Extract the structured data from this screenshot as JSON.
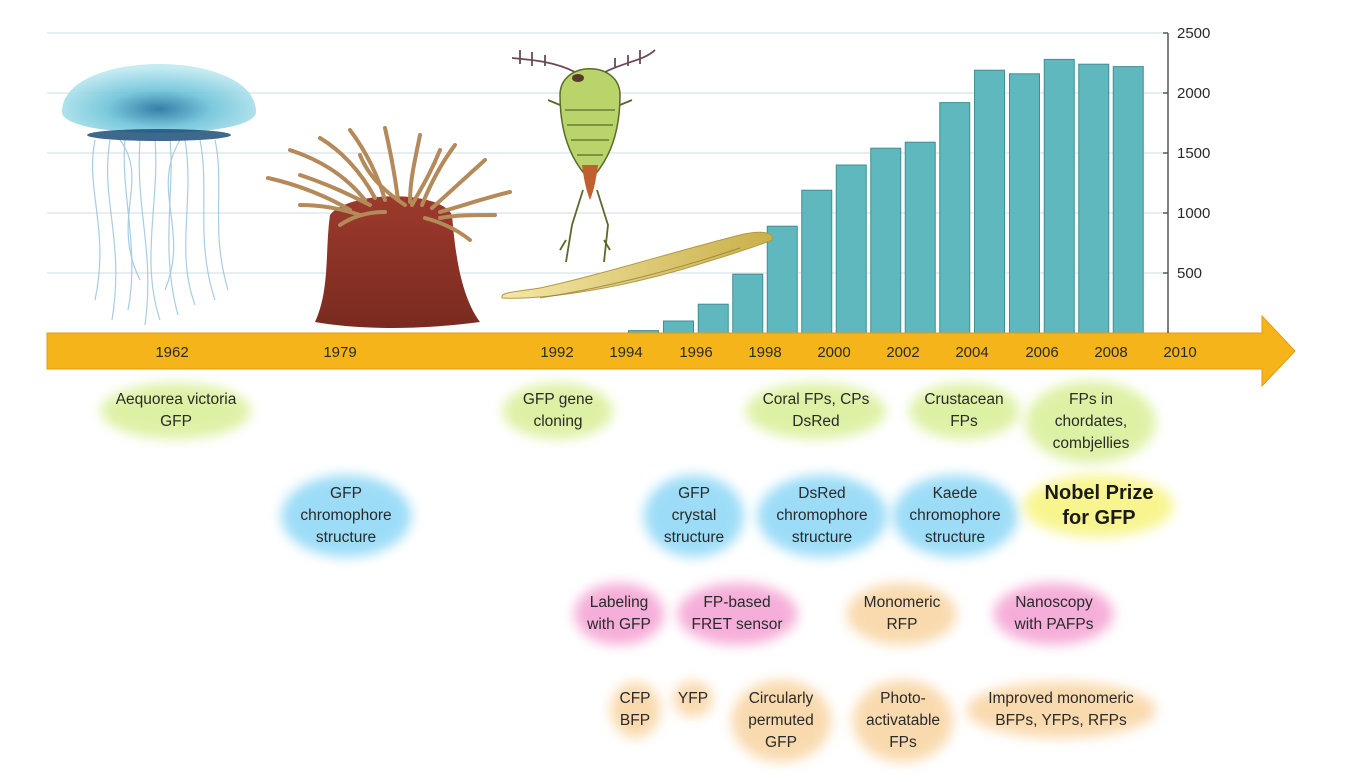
{
  "chart_data": {
    "type": "bar",
    "years": [
      1994,
      1995,
      1996,
      1997,
      1998,
      1999,
      2000,
      2001,
      2002,
      2003,
      2004,
      2005,
      2006,
      2007,
      2008,
      2009
    ],
    "values": [
      20,
      100,
      240,
      490,
      890,
      1190,
      1400,
      1540,
      1590,
      1920,
      2190,
      2160,
      2280,
      2240,
      2220,
      0
    ],
    "ylim": [
      0,
      2500
    ],
    "yticks": [
      500,
      1000,
      1500,
      2000,
      2500
    ],
    "timeline_ticks": [
      1962,
      1979,
      1992,
      1994,
      1996,
      1998,
      2000,
      2002,
      2004,
      2006,
      2008,
      2010
    ],
    "grid": true,
    "colors": {
      "bar": "#5fb8bd",
      "bar_edge": "#3f8f93",
      "arrow": "#f5b41a",
      "grid": "#cfdde2"
    }
  },
  "milestones": [
    {
      "id": "aequorea",
      "text": "Aequorea victoria\nGFP",
      "glow": "#c8e86a"
    },
    {
      "id": "gfp-cloning",
      "text": "GFP gene\ncloning",
      "glow": "#c8e86a"
    },
    {
      "id": "coral",
      "text": "Coral FPs, CPs\nDsRed",
      "glow": "#c8e86a"
    },
    {
      "id": "crustacean",
      "text": "Crustacean\nFPs",
      "glow": "#c8e86a"
    },
    {
      "id": "chordates",
      "text": "FPs in\nchordates,\ncombjellies",
      "glow": "#c8e86a"
    },
    {
      "id": "gfp-chromophore",
      "text": "GFP\nchromophore\nstructure",
      "glow": "#5cc6f2"
    },
    {
      "id": "gfp-crystal",
      "text": "GFP\ncrystal\nstructure",
      "glow": "#5cc6f2"
    },
    {
      "id": "dsred-chromophore",
      "text": "DsRed\nchromophore\nstructure",
      "glow": "#5cc6f2"
    },
    {
      "id": "kaede",
      "text": "Kaede\nchromophore\nstructure",
      "glow": "#5cc6f2"
    },
    {
      "id": "nobel",
      "text": "Nobel Prize\nfor GFP",
      "glow": "#f6f26a"
    },
    {
      "id": "labeling",
      "text": "Labeling\nwith GFP",
      "glow": "#f07ac0"
    },
    {
      "id": "fret",
      "text": "FP-based\nFRET sensor",
      "glow": "#f07ac0"
    },
    {
      "id": "monomeric-rfp",
      "text": "Monomeric\nRFP",
      "glow": "#f5c27a"
    },
    {
      "id": "nanoscopy",
      "text": "Nanoscopy\nwith PAFPs",
      "glow": "#f07ac0"
    },
    {
      "id": "cfp-bfp",
      "text": "CFP\nBFP",
      "glow": "#f5c27a"
    },
    {
      "id": "yfp",
      "text": "YFP",
      "glow": "#f5c27a"
    },
    {
      "id": "circular",
      "text": "Circularly\npermuted\nGFP",
      "glow": "#f5c27a"
    },
    {
      "id": "photoactivatable",
      "text": "Photo-\nactivatable\nFPs",
      "glow": "#f5c27a"
    },
    {
      "id": "improved",
      "text": "Improved monomeric\nBFPs, YFPs, RFPs",
      "glow": "#f5c27a"
    }
  ],
  "illustrations": [
    "jellyfish-icon",
    "sea-anemone-icon",
    "copepod-icon",
    "lancelet-icon"
  ]
}
